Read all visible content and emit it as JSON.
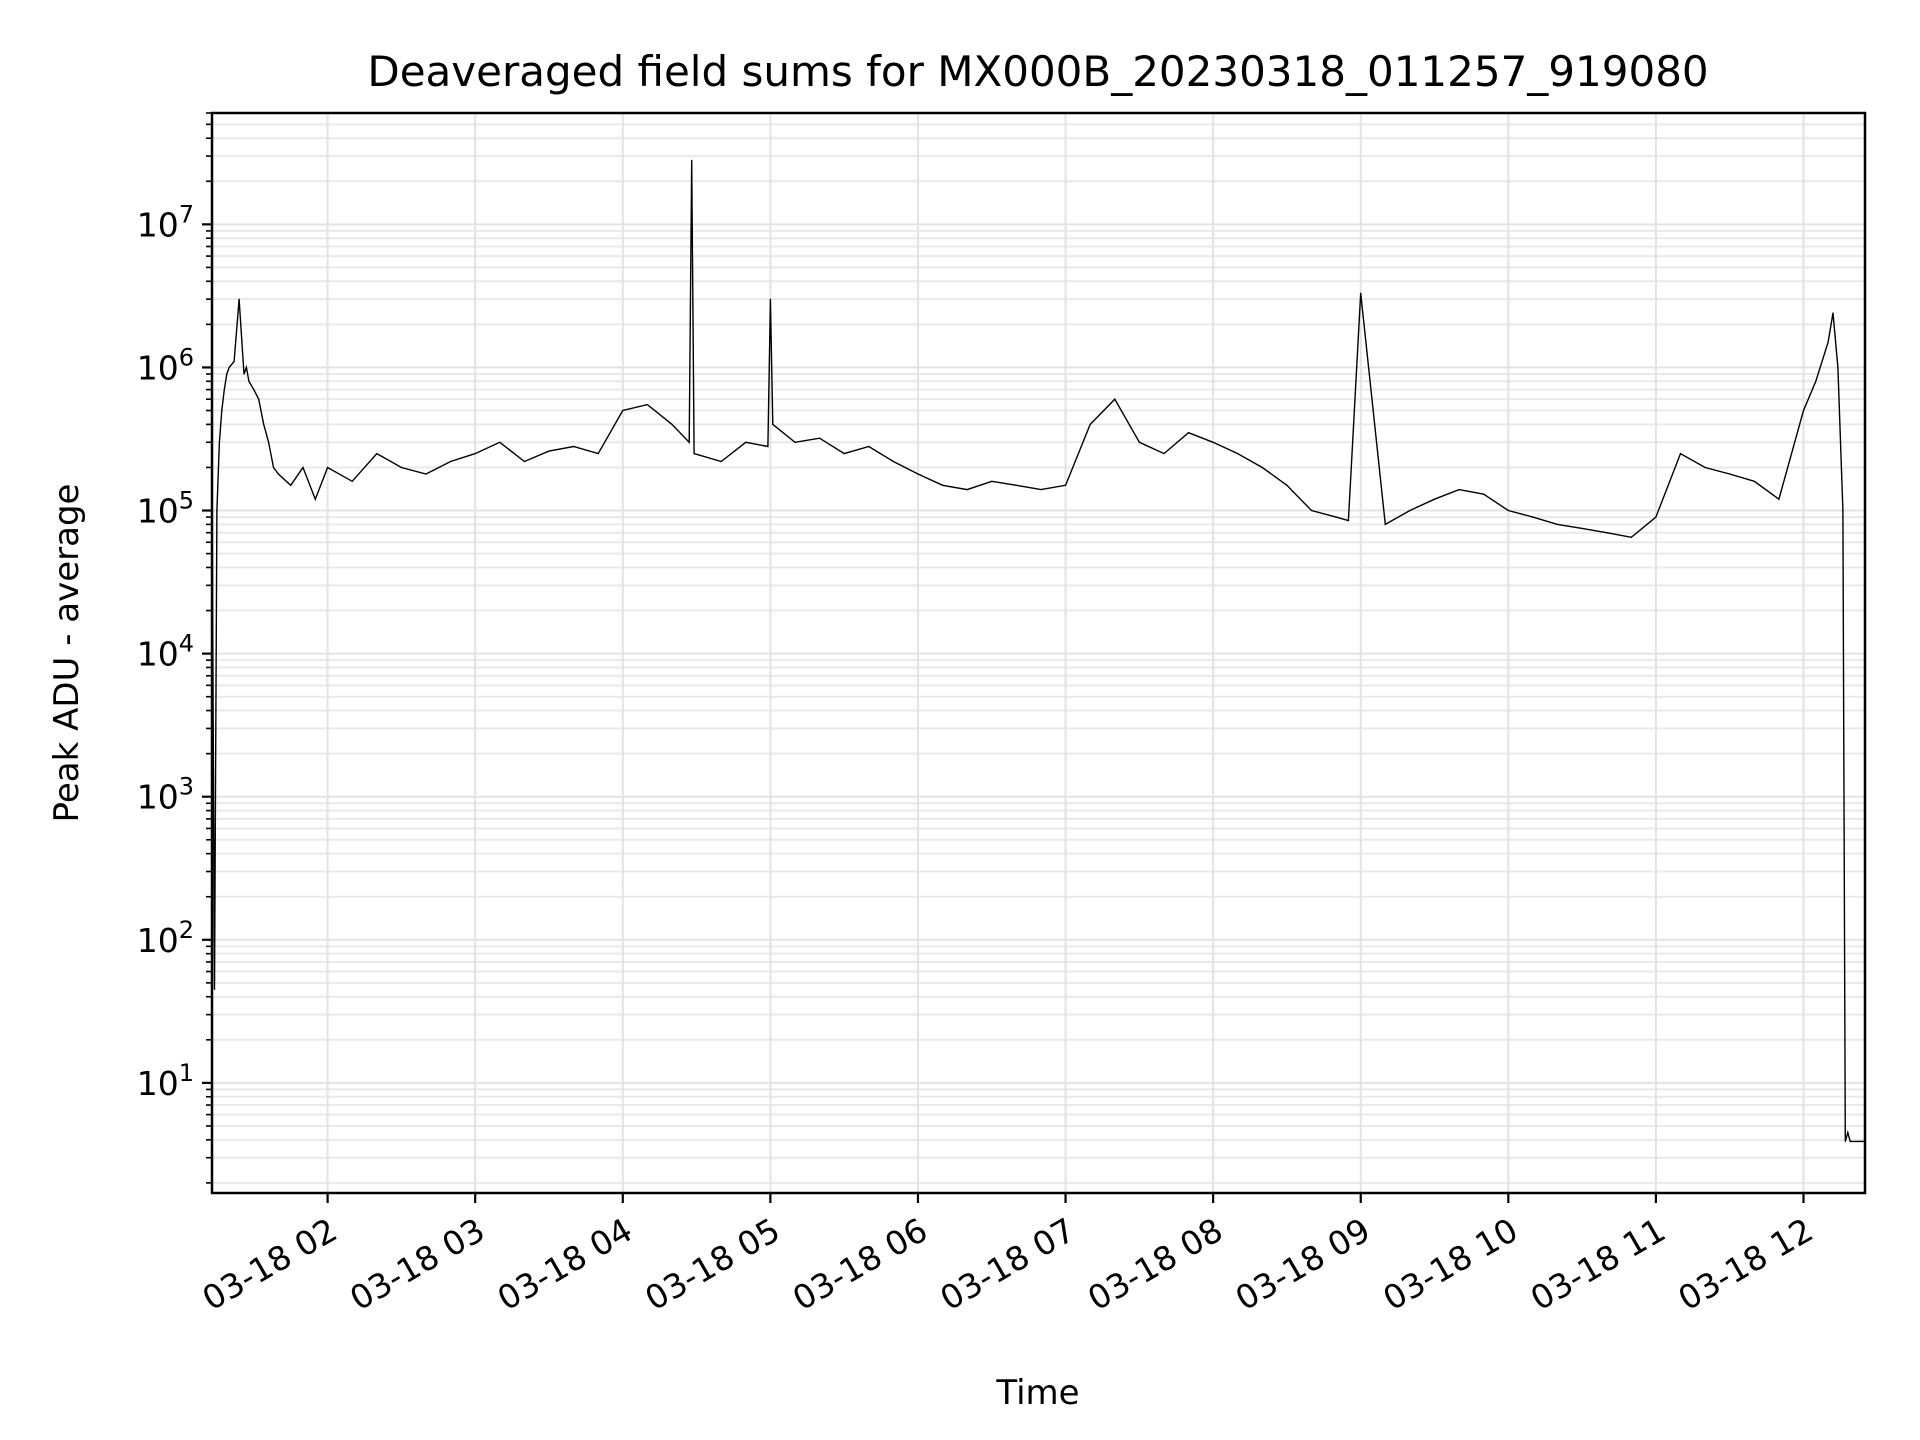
{
  "chart_data": {
    "type": "line",
    "title": "Deaveraged field sums for MX000B_20230318_011257_919080",
    "xlabel": "Time",
    "ylabel": "Peak ADU - average",
    "yscale": "log",
    "ylim": [
      1.7,
      60000000
    ],
    "xlim": [
      "03-18 01:13",
      "03-18 12:25"
    ],
    "grid": true,
    "xticks": [
      "03-18 02",
      "03-18 03",
      "03-18 04",
      "03-18 05",
      "03-18 06",
      "03-18 07",
      "03-18 08",
      "03-18 09",
      "03-18 10",
      "03-18 11",
      "03-18 12"
    ],
    "ytick_exponents": [
      1,
      2,
      3,
      4,
      5,
      6,
      7
    ],
    "series": [
      {
        "color": "#000000",
        "x": [
          "03-18 01:13",
          "03-18 01:13",
          "03-18 01:14",
          "03-18 01:15",
          "03-18 01:16",
          "03-18 01:17",
          "03-18 01:18",
          "03-18 01:19",
          "03-18 01:20",
          "03-18 01:22",
          "03-18 01:24",
          "03-18 01:26",
          "03-18 01:27",
          "03-18 01:28",
          "03-18 01:30",
          "03-18 01:32",
          "03-18 01:34",
          "03-18 01:36",
          "03-18 01:38",
          "03-18 01:40",
          "03-18 01:45",
          "03-18 01:50",
          "03-18 01:55",
          "03-18 02:00",
          "03-18 02:10",
          "03-18 02:20",
          "03-18 02:30",
          "03-18 02:40",
          "03-18 02:50",
          "03-18 03:00",
          "03-18 03:10",
          "03-18 03:20",
          "03-18 03:30",
          "03-18 03:40",
          "03-18 03:50",
          "03-18 04:00",
          "03-18 04:10",
          "03-18 04:20",
          "03-18 04:27",
          "03-18 04:28",
          "03-18 04:29",
          "03-18 04:40",
          "03-18 04:50",
          "03-18 04:59",
          "03-18 05:00",
          "03-18 05:01",
          "03-18 05:10",
          "03-18 05:20",
          "03-18 05:30",
          "03-18 05:40",
          "03-18 05:50",
          "03-18 06:00",
          "03-18 06:10",
          "03-18 06:20",
          "03-18 06:30",
          "03-18 06:40",
          "03-18 06:50",
          "03-18 07:00",
          "03-18 07:10",
          "03-18 07:20",
          "03-18 07:30",
          "03-18 07:40",
          "03-18 07:50",
          "03-18 08:00",
          "03-18 08:10",
          "03-18 08:20",
          "03-18 08:30",
          "03-18 08:40",
          "03-18 08:50",
          "03-18 08:55",
          "03-18 09:00",
          "03-18 09:10",
          "03-18 09:20",
          "03-18 09:30",
          "03-18 09:40",
          "03-18 09:50",
          "03-18 10:00",
          "03-18 10:10",
          "03-18 10:20",
          "03-18 10:30",
          "03-18 10:40",
          "03-18 10:50",
          "03-18 11:00",
          "03-18 11:10",
          "03-18 11:20",
          "03-18 11:30",
          "03-18 11:40",
          "03-18 11:50",
          "03-18 12:00",
          "03-18 12:05",
          "03-18 12:10",
          "03-18 12:12",
          "03-18 12:14",
          "03-18 12:16",
          "03-18 12:17",
          "03-18 12:18",
          "03-18 12:19",
          "03-18 12:25"
        ],
        "y": [
          1.7,
          170000,
          45,
          100000,
          300000,
          500000,
          700000,
          900000,
          1000000,
          1100000,
          3000000,
          900000,
          1000000,
          800000,
          700000,
          600000,
          400000,
          300000,
          200000,
          180000,
          150000,
          200000,
          120000,
          200000,
          160000,
          250000,
          200000,
          180000,
          220000,
          250000,
          300000,
          220000,
          260000,
          280000,
          250000,
          500000,
          550000,
          400000,
          300000,
          28000000,
          250000,
          220000,
          300000,
          280000,
          3000000,
          400000,
          300000,
          320000,
          250000,
          280000,
          220000,
          180000,
          150000,
          140000,
          160000,
          150000,
          140000,
          150000,
          400000,
          600000,
          300000,
          250000,
          350000,
          300000,
          250000,
          200000,
          150000,
          100000,
          90000,
          85000,
          3300000,
          80000,
          100000,
          120000,
          140000,
          130000,
          100000,
          90000,
          80000,
          75000,
          70000,
          65000,
          90000,
          250000,
          200000,
          180000,
          160000,
          120000,
          500000,
          800000,
          1500000,
          2400000,
          1000000,
          100000,
          3.9,
          4.5,
          3.9,
          3.9
        ]
      }
    ]
  }
}
